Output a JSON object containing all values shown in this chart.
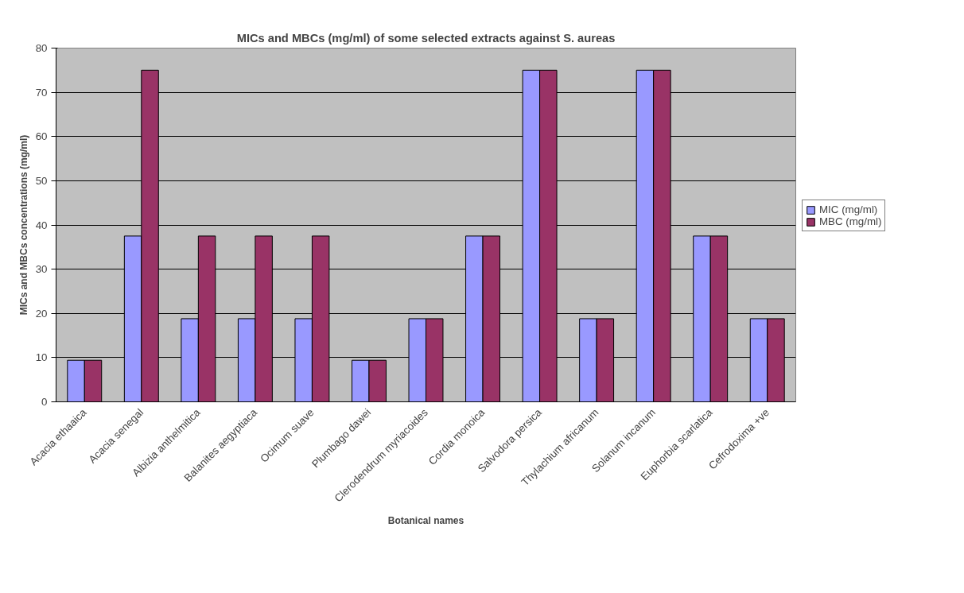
{
  "chart_data": {
    "type": "bar",
    "title": "MICs and MBCs (mg/ml) of some selected extracts against S. aureas",
    "xlabel": "Botanical names",
    "ylabel": "MICs and MBCs concentrations (mg/ml)",
    "categories": [
      "Acacia ethaaica",
      "Acacia senegal",
      "Albizia anthelmitica",
      "Balanites aegyptiaca",
      "Ocimum suave",
      "Plumbago dawei",
      "Clerodendrum myriacoides",
      "Cordia monoica",
      "Salvodora persica",
      "Thylachium africanum",
      "Solanum incanum",
      "Euphorbia scarlatica",
      "Cefrodoxima +ve"
    ],
    "series": [
      {
        "name": "MIC (mg/ml)",
        "color": "#9999ff",
        "values": [
          9.4,
          37.5,
          18.8,
          18.8,
          18.8,
          9.4,
          18.8,
          37.5,
          75,
          18.8,
          75,
          37.5,
          18.8
        ]
      },
      {
        "name": "MBC (mg/ml)",
        "color": "#993366",
        "values": [
          9.4,
          75,
          37.5,
          37.5,
          37.5,
          9.4,
          18.8,
          37.5,
          75,
          18.8,
          75,
          37.5,
          18.8
        ]
      }
    ],
    "ylim": [
      0,
      80
    ],
    "yticks": [
      0,
      10,
      20,
      30,
      40,
      50,
      60,
      70,
      80
    ],
    "grid": "y",
    "legend": "right"
  }
}
